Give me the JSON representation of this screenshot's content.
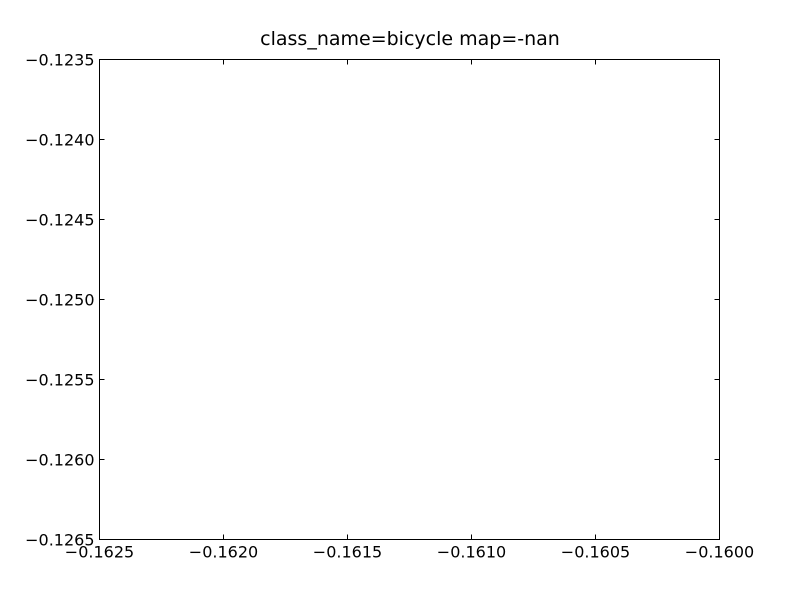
{
  "chart_data": {
    "type": "line",
    "title": "class_name=bicycle map=-nan",
    "xlabel": "",
    "ylabel": "",
    "xlim": [
      -0.1625,
      -0.16
    ],
    "ylim": [
      -0.1265,
      -0.1235
    ],
    "x_ticks": [
      {
        "value": -0.1625,
        "label": "−0.1625"
      },
      {
        "value": -0.162,
        "label": "−0.1620"
      },
      {
        "value": -0.1615,
        "label": "−0.1615"
      },
      {
        "value": -0.161,
        "label": "−0.1610"
      },
      {
        "value": -0.1605,
        "label": "−0.1605"
      },
      {
        "value": -0.16,
        "label": "−0.1600"
      }
    ],
    "y_ticks": [
      {
        "value": -0.1235,
        "label": "−0.1235"
      },
      {
        "value": -0.124,
        "label": "−0.1240"
      },
      {
        "value": -0.1245,
        "label": "−0.1245"
      },
      {
        "value": -0.125,
        "label": "−0.1250"
      },
      {
        "value": -0.1255,
        "label": "−0.1255"
      },
      {
        "value": -0.126,
        "label": "−0.1260"
      },
      {
        "value": -0.1265,
        "label": "−0.1265"
      }
    ],
    "series": [],
    "grid": false,
    "legend": "none",
    "colors": {
      "axes": "#000000",
      "background": "#ffffff"
    }
  }
}
